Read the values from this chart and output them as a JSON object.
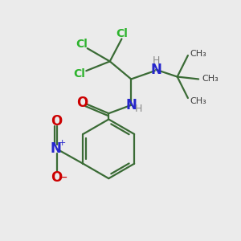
{
  "bg_color": "#ebebeb",
  "bond_color": "#3a6b35",
  "bond_width": 1.6,
  "cl_color": "#2db32d",
  "n_color": "#2626cc",
  "o_color": "#cc0000",
  "h_color": "#8a8a8a",
  "dark_color": "#3a3a3a",
  "figsize": [
    3.0,
    3.0
  ],
  "dpi": 100,
  "xlim": [
    0,
    10
  ],
  "ylim": [
    0,
    10
  ]
}
